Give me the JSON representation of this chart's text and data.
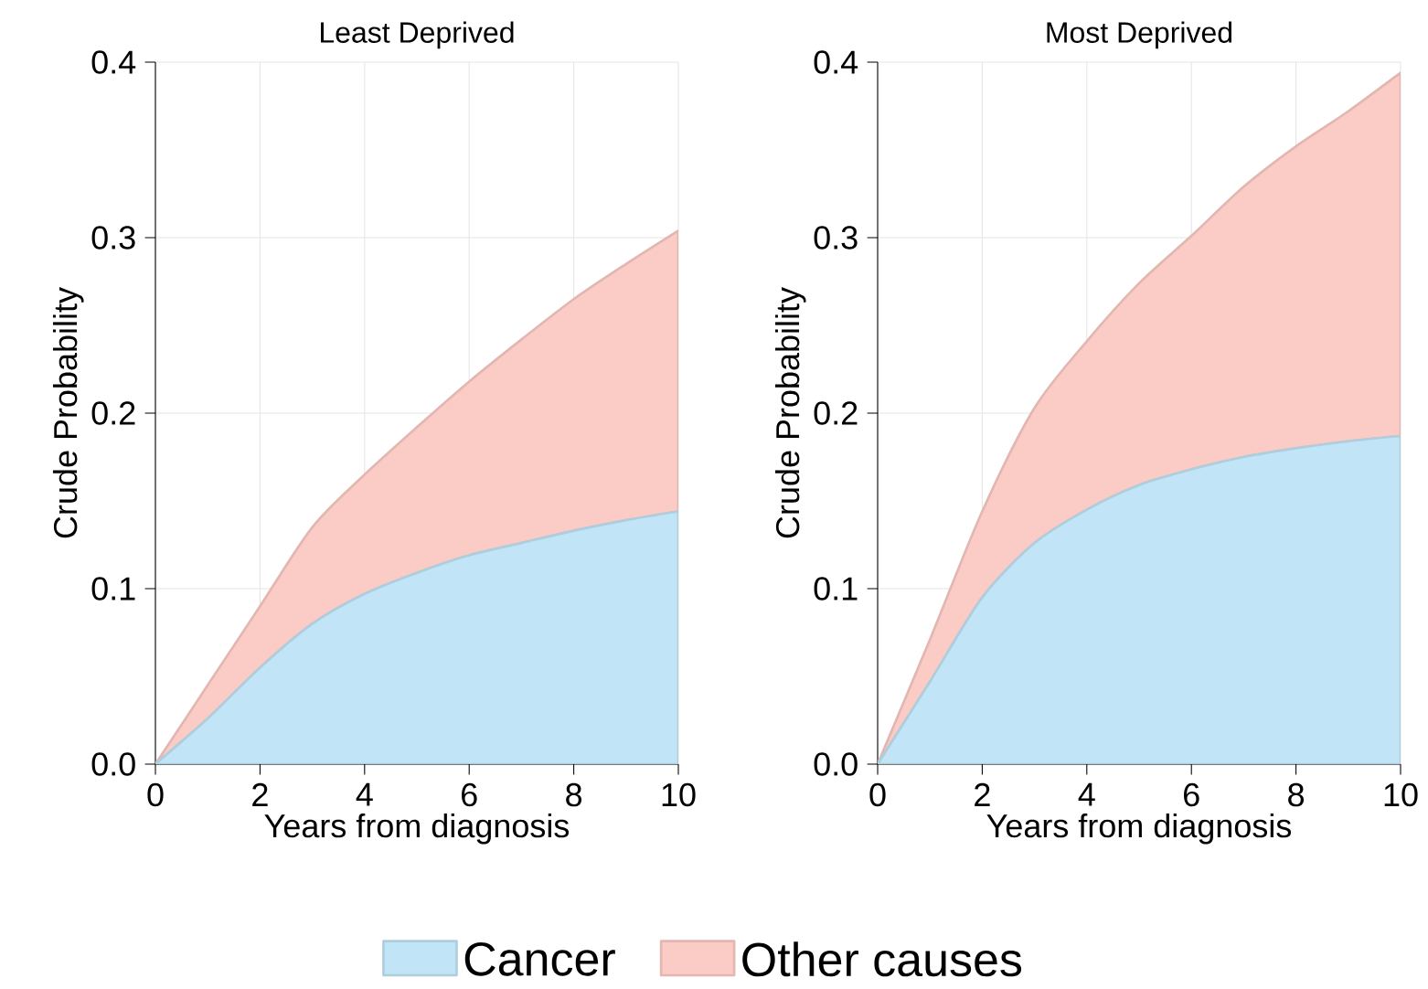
{
  "chart_data": [
    {
      "type": "area",
      "stacked": true,
      "title": "Least Deprived",
      "xlabel": "Years from diagnosis",
      "ylabel": "Crude Probability",
      "x": [
        0,
        1,
        2,
        3,
        4,
        5,
        6,
        7,
        8,
        9,
        10
      ],
      "series": [
        {
          "color": "#c1e5f6",
          "values": [
            0,
            0.026,
            0.055,
            0.08,
            0.097,
            0.109,
            0.119,
            0.126,
            0.133,
            0.139,
            0.144
          ]
        },
        {
          "color": "#fbcbc5",
          "values": [
            0,
            0.019,
            0.035,
            0.055,
            0.068,
            0.083,
            0.099,
            0.116,
            0.132,
            0.146,
            0.16
          ]
        }
      ],
      "xlim": [
        0,
        10
      ],
      "ylim": [
        0,
        0.4
      ],
      "xticks": [
        0,
        2,
        4,
        6,
        8,
        10
      ],
      "yticks": [
        {
          "value": 0,
          "label": "0.0"
        },
        {
          "value": 0.1,
          "label": "0.1"
        },
        {
          "value": 0.2,
          "label": "0.2"
        },
        {
          "value": 0.3,
          "label": "0.3"
        },
        {
          "value": 0.4,
          "label": "0.4"
        }
      ],
      "grid": true
    },
    {
      "type": "area",
      "stacked": true,
      "title": "Most Deprived",
      "xlabel": "Years from diagnosis",
      "ylabel": "Crude Probability",
      "x": [
        0,
        1,
        2,
        3,
        4,
        5,
        6,
        7,
        8,
        9,
        10
      ],
      "series": [
        {
          "name": "Cancer",
          "color": "#c1e5f6",
          "values": [
            0,
            0.047,
            0.095,
            0.126,
            0.145,
            0.159,
            0.168,
            0.175,
            0.18,
            0.184,
            0.187
          ]
        },
        {
          "name": "Other causes",
          "color": "#fbcbc5",
          "values": [
            0,
            0.024,
            0.049,
            0.077,
            0.096,
            0.115,
            0.133,
            0.154,
            0.172,
            0.188,
            0.207
          ]
        }
      ],
      "xlim": [
        0,
        10
      ],
      "ylim": [
        0,
        0.4
      ],
      "xticks": [
        0,
        2,
        4,
        6,
        8,
        10
      ],
      "yticks": [
        {
          "value": 0,
          "label": "0.0"
        },
        {
          "value": 0.1,
          "label": "0.1"
        },
        {
          "value": 0.2,
          "label": "0.2"
        },
        {
          "value": 0.3,
          "label": "0.3"
        },
        {
          "value": 0.4,
          "label": "0.4"
        }
      ],
      "grid": true,
      "legend": "bottom"
    }
  ]
}
